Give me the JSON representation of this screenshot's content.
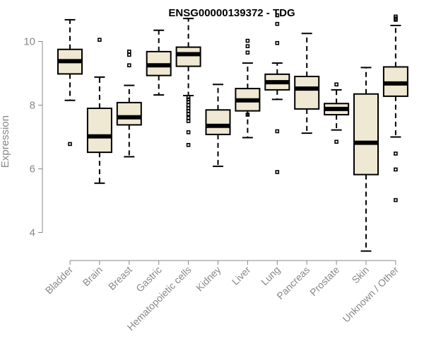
{
  "chart_data": {
    "type": "boxplot",
    "title": "ENSG00000139372 - TDG",
    "ylabel": "Expression",
    "xlabel": "",
    "ylim": [
      3.3,
      10.9
    ],
    "yticks": [
      4,
      6,
      8,
      10
    ],
    "box_fill": "#efe8d2",
    "categories": [
      "Bladder",
      "Brain",
      "Breast",
      "Gastric",
      "Hematopoietic cells",
      "Kidney",
      "Liver",
      "Lung",
      "Pancreas",
      "Prostate",
      "Skin",
      "Unknown / Other"
    ],
    "boxes": [
      {
        "name": "Bladder",
        "whislo": 8.15,
        "q1": 8.98,
        "med": 9.38,
        "q3": 9.75,
        "whishi": 10.68,
        "outliers": [
          6.78
        ]
      },
      {
        "name": "Brain",
        "whislo": 5.55,
        "q1": 6.52,
        "med": 7.02,
        "q3": 7.9,
        "whishi": 8.88,
        "outliers": [
          10.05
        ]
      },
      {
        "name": "Breast",
        "whislo": 6.38,
        "q1": 7.38,
        "med": 7.62,
        "q3": 8.08,
        "whishi": 8.62,
        "outliers": [
          9.25,
          9.58,
          9.68
        ]
      },
      {
        "name": "Gastric",
        "whislo": 8.32,
        "q1": 8.93,
        "med": 9.25,
        "q3": 9.68,
        "whishi": 10.35,
        "outliers": []
      },
      {
        "name": "Hematopoietic cells",
        "whislo": 8.3,
        "q1": 9.22,
        "med": 9.6,
        "q3": 9.82,
        "whishi": 10.72,
        "outliers": [
          6.75,
          7.15,
          7.5,
          7.6,
          7.72,
          7.82,
          7.9,
          8.0,
          8.1,
          8.18,
          8.25
        ]
      },
      {
        "name": "Kidney",
        "whislo": 6.08,
        "q1": 7.08,
        "med": 7.35,
        "q3": 7.85,
        "whishi": 8.65,
        "outliers": []
      },
      {
        "name": "Liver",
        "whislo": 6.98,
        "q1": 7.82,
        "med": 8.15,
        "q3": 8.52,
        "whishi": 9.32,
        "outliers": [
          7.7,
          9.65,
          9.85,
          10.02
        ]
      },
      {
        "name": "Lung",
        "whislo": 8.18,
        "q1": 8.48,
        "med": 8.72,
        "q3": 8.97,
        "whishi": 9.32,
        "outliers": [
          5.9,
          7.18,
          9.95,
          10.55,
          10.82
        ]
      },
      {
        "name": "Pancreas",
        "whislo": 7.12,
        "q1": 7.88,
        "med": 8.52,
        "q3": 8.9,
        "whishi": 10.25,
        "outliers": []
      },
      {
        "name": "Prostate",
        "whislo": 7.22,
        "q1": 7.7,
        "med": 7.88,
        "q3": 8.05,
        "whishi": 8.48,
        "outliers": [
          6.85,
          8.65
        ]
      },
      {
        "name": "Skin",
        "whislo": 3.42,
        "q1": 5.82,
        "med": 6.82,
        "q3": 8.35,
        "whishi": 9.18,
        "outliers": []
      },
      {
        "name": "Unknown / Other",
        "whislo": 7.0,
        "q1": 8.28,
        "med": 8.68,
        "q3": 9.2,
        "whishi": 10.5,
        "outliers": [
          5.02,
          5.98,
          6.48,
          10.68,
          10.72,
          10.78
        ]
      }
    ]
  }
}
